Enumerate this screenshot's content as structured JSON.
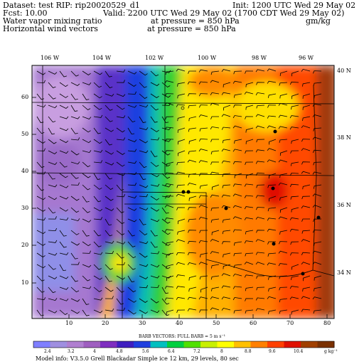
{
  "header": {
    "dataset": "Dataset: test  RIP: rip20020529_d1",
    "init": "Init: 1200 UTC Wed 29 May 02",
    "fcst": "Fcst:    10.00",
    "valid": "Valid: 2200 UTC Wed 29 May 02 (1700 CDT Wed 29 May 02)",
    "field1_name": "Water vapor mixing ratio",
    "field1_level": "at pressure =  850 hPa",
    "field1_units": "gm/kg",
    "field2_name": "Horizontal wind vectors",
    "field2_level": "at pressure =  850 hPa"
  },
  "axes": {
    "lon_labels": [
      "106 W",
      "104 W",
      "102 W",
      "100 W",
      "98 W",
      "96 W"
    ],
    "lat_labels": [
      "40 N",
      "38 N",
      "36 N",
      "34 N"
    ],
    "y_ticks": [
      "60",
      "50",
      "40",
      "30",
      "20",
      "10"
    ],
    "x_ticks": [
      "10",
      "20",
      "30",
      "40",
      "50",
      "60",
      "70",
      "80"
    ]
  },
  "colorbar": {
    "title": "BARB VECTORS:  FULL BARB = 5 m s⁻¹",
    "labels": [
      "2.4",
      "3.2",
      "4",
      "4.8",
      "5.6",
      "6.4",
      "7.2",
      "8",
      "8.8",
      "9.6",
      "10.4",
      "g kg⁻¹"
    ],
    "colors": [
      "#7f7fff",
      "#9f8fe0",
      "#b07fd0",
      "#9f5fc0",
      "#7f2fc0",
      "#3f1fc0",
      "#1f3fdf",
      "#00c0c0",
      "#00d040",
      "#50e000",
      "#c8f000",
      "#ffff00",
      "#ffc000",
      "#ff8000",
      "#ff4000",
      "#e01000",
      "#a04000",
      "#7a3000"
    ]
  },
  "footer": "Model info: V3.5.0  Grell    Blackadar  Simple ice    12 km,  29 levels,   80 sec",
  "field_colors": {
    "purple_light": "#b07fd0",
    "purple_mid": "#9a6ac8",
    "blue_purple": "#5030c8",
    "blue": "#1f3fdf",
    "cyan": "#00c0c0",
    "green": "#00d040",
    "yellow": "#ffff00",
    "orange": "#ff9000",
    "red": "#ff3000",
    "brown": "#8b3a10"
  }
}
